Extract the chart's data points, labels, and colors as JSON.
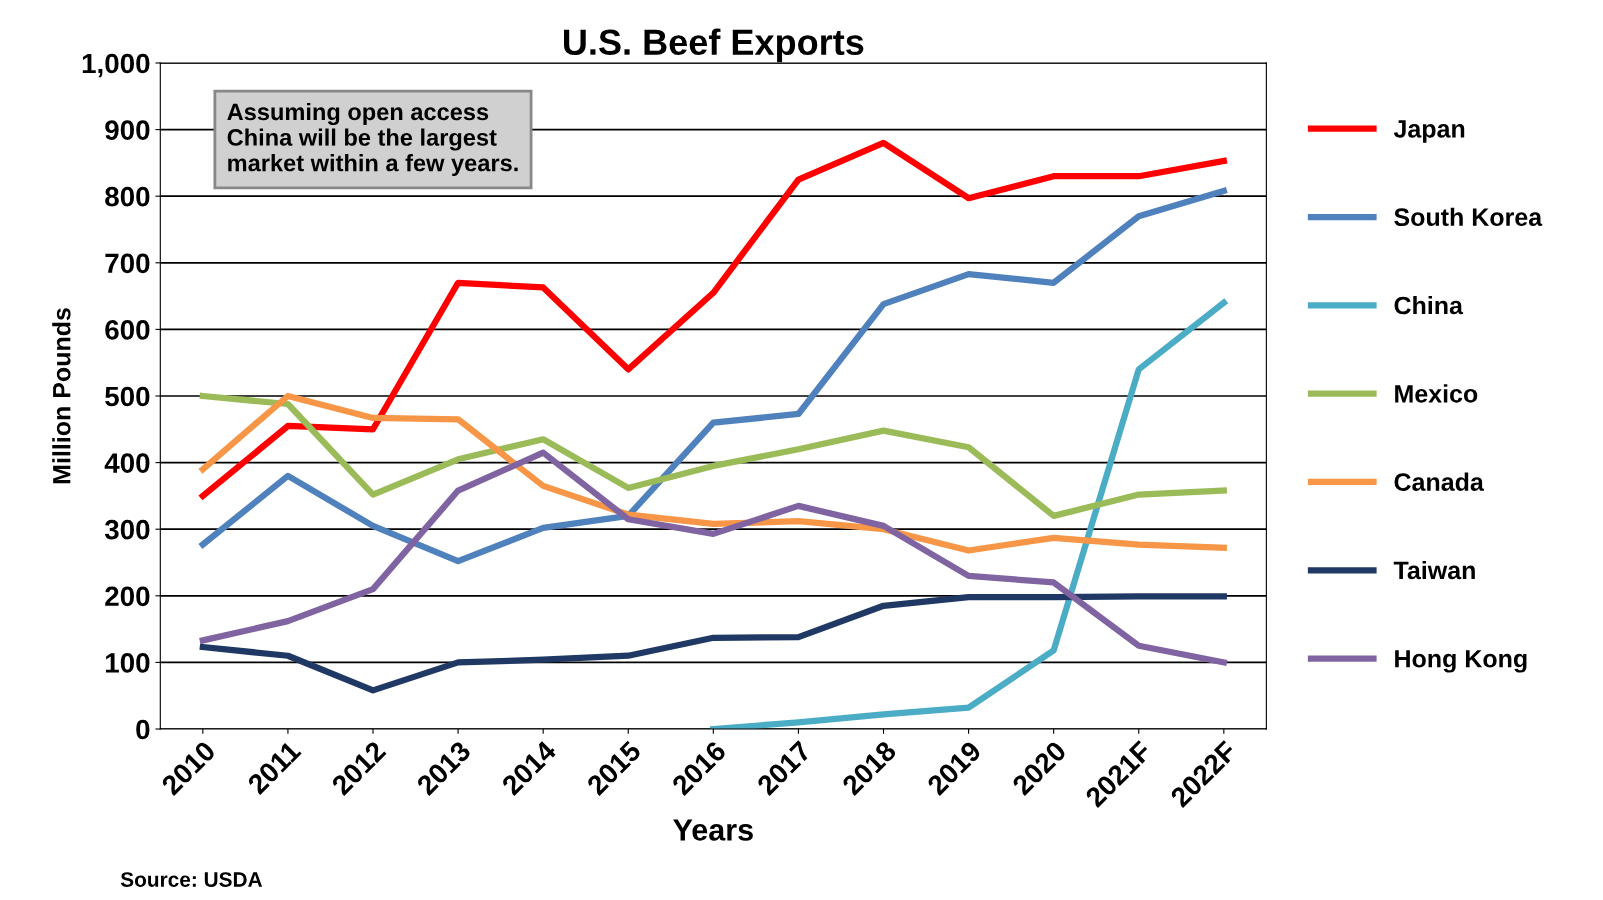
{
  "chart_data": {
    "type": "line",
    "title": "U.S. Beef Exports",
    "xlabel": "Years",
    "ylabel": "Million Pounds",
    "categories": [
      "2010",
      "2011",
      "2012",
      "2013",
      "2014",
      "2015",
      "2016",
      "2017",
      "2018",
      "2019",
      "2020",
      "2021F",
      "2022F"
    ],
    "series": [
      {
        "name": "Japan",
        "color": "#ff0000",
        "values": [
          350,
          455,
          450,
          670,
          663,
          540,
          655,
          825,
          880,
          797,
          830,
          830,
          853
        ]
      },
      {
        "name": "South Korea",
        "color": "#4f81bd",
        "values": [
          277,
          380,
          305,
          252,
          302,
          320,
          460,
          473,
          638,
          683,
          670,
          770,
          808
        ]
      },
      {
        "name": "China",
        "color": "#4bacc6",
        "values": [
          null,
          null,
          null,
          null,
          null,
          null,
          0,
          10,
          22,
          32,
          118,
          540,
          640
        ]
      },
      {
        "name": "Mexico",
        "color": "#9bbb59",
        "values": [
          500,
          488,
          352,
          405,
          435,
          362,
          395,
          420,
          448,
          423,
          320,
          352,
          358
        ]
      },
      {
        "name": "Canada",
        "color": "#f79646",
        "values": [
          390,
          500,
          467,
          465,
          365,
          322,
          308,
          312,
          300,
          268,
          287,
          277,
          272
        ]
      },
      {
        "name": "Taiwan",
        "color": "#1f3864",
        "values": [
          123,
          110,
          58,
          100,
          104,
          110,
          137,
          138,
          185,
          198,
          198,
          199,
          199
        ]
      },
      {
        "name": "Hong Kong",
        "color": "#8064a2",
        "values": [
          133,
          162,
          210,
          358,
          415,
          315,
          293,
          335,
          305,
          230,
          220,
          125,
          100
        ]
      }
    ],
    "ylim": [
      0,
      1000
    ],
    "yticks": [
      0,
      100,
      200,
      300,
      400,
      500,
      600,
      700,
      800,
      {
        "value": 900,
        "label": "900"
      },
      {
        "value": 1000,
        "label": "1,000"
      }
    ],
    "grid": "y",
    "legend": "right",
    "marker": "none",
    "line_style": "solid",
    "annotations": [
      "Assuming open access\nChina will be the largest\nmarket within a few years.",
      "Source: USDA"
    ]
  }
}
